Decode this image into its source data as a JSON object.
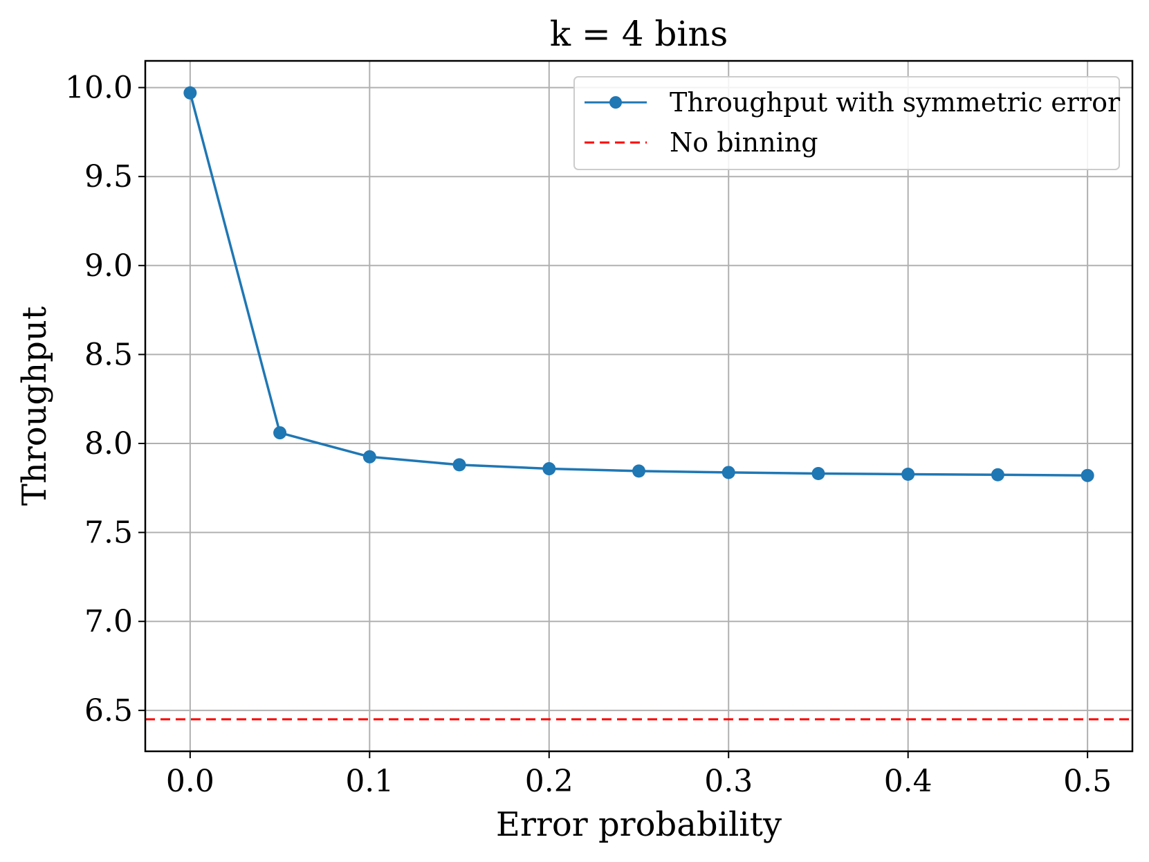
{
  "chart_data": {
    "type": "line",
    "title": "k = 4 bins",
    "xlabel": "Error probability",
    "ylabel": "Throughput",
    "xlim": [
      -0.025,
      0.525
    ],
    "ylim": [
      6.27,
      10.15
    ],
    "xticks": [
      0.0,
      0.1,
      0.2,
      0.3,
      0.4,
      0.5
    ],
    "xtick_labels": [
      "0.0",
      "0.1",
      "0.2",
      "0.3",
      "0.4",
      "0.5"
    ],
    "yticks": [
      6.5,
      7.0,
      7.5,
      8.0,
      8.5,
      9.0,
      9.5,
      10.0
    ],
    "ytick_labels": [
      "6.5",
      "7.0",
      "7.5",
      "8.0",
      "8.5",
      "9.0",
      "9.5",
      "10.0"
    ],
    "grid": true,
    "legend_position": "top-right",
    "series": [
      {
        "name": "Throughput with symmetric error",
        "color": "#1f77b4",
        "style": "line-with-markers",
        "x": [
          0.0,
          0.05,
          0.1,
          0.15,
          0.2,
          0.25,
          0.3,
          0.35,
          0.4,
          0.45,
          0.5
        ],
        "y": [
          9.97,
          8.06,
          7.925,
          7.88,
          7.858,
          7.845,
          7.837,
          7.831,
          7.827,
          7.824,
          7.82
        ]
      }
    ],
    "reference_lines": [
      {
        "name": "No binning",
        "color": "#ff0000",
        "style": "dashed",
        "orientation": "horizontal",
        "y": 6.45
      }
    ]
  }
}
